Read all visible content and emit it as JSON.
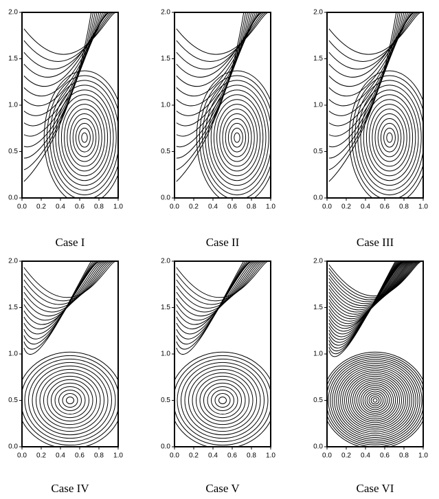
{
  "chart_data": [
    {
      "type": "contour",
      "caption": "Case I",
      "xlim": [
        0,
        1
      ],
      "ylim": [
        0,
        2
      ],
      "xticks": [
        {
          "value": 0,
          "label": "0.0"
        },
        0.2,
        0.4,
        0.6,
        0.8,
        {
          "value": 1,
          "label": "1.0"
        }
      ],
      "yticks": [
        {
          "value": 0,
          "label": "0.0"
        },
        0.5,
        {
          "value": 1,
          "label": "1.0"
        },
        1.5,
        {
          "value": 2,
          "label": "2.0"
        }
      ]
    },
    {
      "type": "contour",
      "caption": "Case II",
      "xlim": [
        0,
        1
      ],
      "ylim": [
        0,
        2
      ],
      "xticks": [
        {
          "value": 0,
          "label": "0.0"
        },
        0.2,
        0.4,
        0.6,
        0.8,
        {
          "value": 1,
          "label": "1.0"
        }
      ],
      "yticks": [
        {
          "value": 0,
          "label": "0.0"
        },
        0.5,
        {
          "value": 1,
          "label": "1.0"
        },
        1.5,
        {
          "value": 2,
          "label": "2.0"
        }
      ]
    },
    {
      "type": "contour",
      "caption": "Case III",
      "xlim": [
        0,
        1
      ],
      "ylim": [
        0,
        2
      ],
      "xticks": [
        {
          "value": 0,
          "label": "0.0"
        },
        0.2,
        0.4,
        0.6,
        0.8,
        {
          "value": 1,
          "label": "1.0"
        }
      ],
      "yticks": [
        {
          "value": 0,
          "label": "0.0"
        },
        0.5,
        {
          "value": 1,
          "label": "1.0"
        },
        1.5,
        {
          "value": 2,
          "label": "2.0"
        }
      ]
    },
    {
      "type": "contour",
      "caption": "Case IV",
      "xlim": [
        0,
        1
      ],
      "ylim": [
        0,
        2
      ],
      "xticks": [
        {
          "value": 0,
          "label": "0.0"
        },
        0.2,
        0.4,
        0.6,
        0.8,
        {
          "value": 1,
          "label": "1.0"
        }
      ],
      "yticks": [
        {
          "value": 0,
          "label": "0.0"
        },
        0.5,
        {
          "value": 1,
          "label": "1.0"
        },
        1.5,
        {
          "value": 2,
          "label": "2.0"
        }
      ]
    },
    {
      "type": "contour",
      "caption": "Case V",
      "xlim": [
        0,
        1
      ],
      "ylim": [
        0,
        2
      ],
      "xticks": [
        {
          "value": 0,
          "label": "0.0"
        },
        0.2,
        0.4,
        0.6,
        0.8,
        {
          "value": 1,
          "label": "1.0"
        }
      ],
      "yticks": [
        {
          "value": 0,
          "label": "0.0"
        },
        0.5,
        {
          "value": 1,
          "label": "1.0"
        },
        1.5,
        {
          "value": 2,
          "label": "2.0"
        }
      ]
    },
    {
      "type": "contour",
      "caption": "Case VI",
      "xlim": [
        0,
        1
      ],
      "ylim": [
        0,
        2
      ],
      "xticks": [
        {
          "value": 0,
          "label": "0.0"
        },
        0.2,
        0.4,
        0.6,
        0.8,
        {
          "value": 1,
          "label": "1.0"
        }
      ],
      "yticks": [
        {
          "value": 0,
          "label": "0.0"
        },
        0.5,
        {
          "value": 1,
          "label": "1.0"
        },
        1.5,
        {
          "value": 2,
          "label": "2.0"
        }
      ]
    }
  ]
}
